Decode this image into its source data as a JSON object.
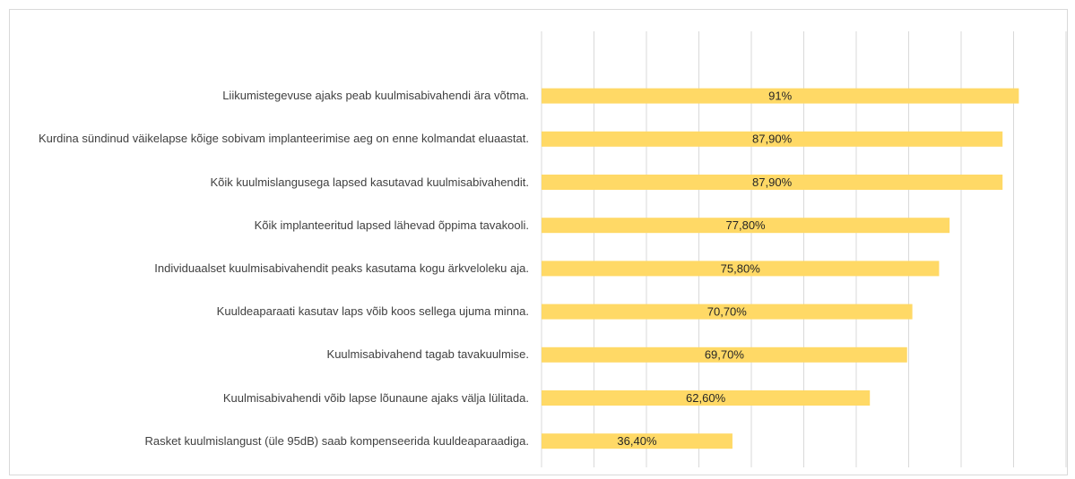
{
  "chart_data": {
    "type": "bar",
    "orientation": "horizontal",
    "categories": [
      "Liikumistegevuse ajaks peab kuulmisabivahendi ära võtma.",
      "Kurdina sündinud väikelapse kõige sobivam implanteerimise aeg on enne kolmandat eluaastat.",
      "Kõik kuulmislangusega lapsed kasutavad kuulmisabivahendit.",
      "Kõik implanteeritud lapsed lähevad õppima tavakooli.",
      "Individuaalset kuulmisabivahendit peaks kasutama kogu ärkveloleku aja.",
      "Kuuldeaparaati kasutav laps võib koos sellega ujuma minna.",
      "Kuulmisabivahend tagab tavakuulmise.",
      "Kuulmisabivahendi võib lapse lõunaune ajaks välja lülitada.",
      "Rasket kuulmislangust (üle 95dB) saab kompenseerida kuuldeaparaadiga."
    ],
    "values": [
      91,
      87.9,
      87.9,
      77.8,
      75.8,
      70.7,
      69.7,
      62.6,
      36.4
    ],
    "value_labels": [
      "91%",
      "87,90%",
      "87,90%",
      "77,80%",
      "75,80%",
      "70,70%",
      "69,70%",
      "62,60%",
      "36,40%"
    ],
    "color": "#ffd966",
    "xlim": [
      0,
      100
    ],
    "xticks": [
      0,
      10,
      20,
      30,
      40,
      50,
      60,
      70,
      80,
      90,
      100
    ],
    "grid": true
  }
}
